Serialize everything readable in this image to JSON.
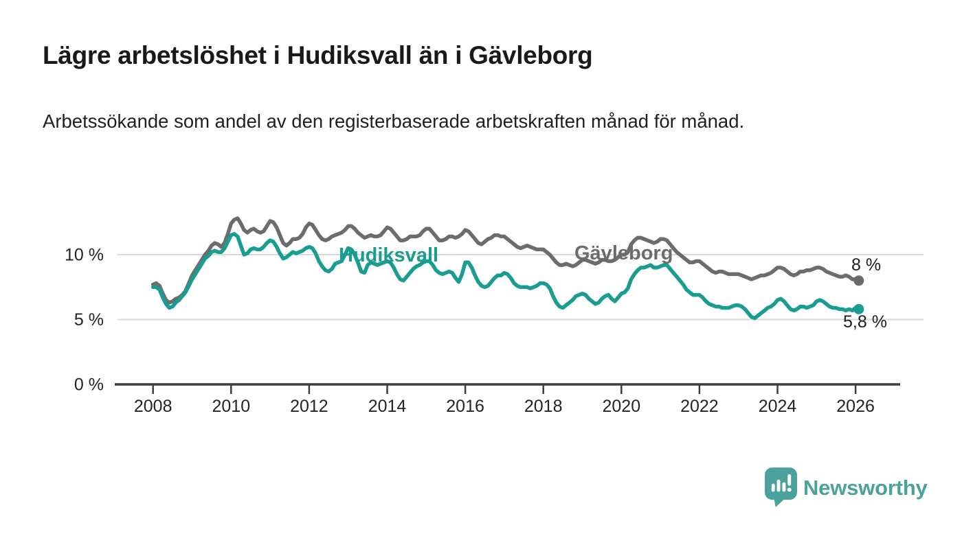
{
  "header": {
    "title": "Lägre arbetslöshet i Hudiksvall än i Gävleborg",
    "subtitle": "Arbetssökande som andel av den registerbaserade arbetskraften månad för månad."
  },
  "chart_data": {
    "type": "line",
    "title": "Lägre arbetslöshet i Hudiksvall än i Gävleborg",
    "subtitle": "Arbetssökande som andel av den registerbaserade arbetskraften månad för månad.",
    "x_unit": "year (monthly observations)",
    "y_unit": "%",
    "x_start": "2008-01",
    "x_end": "2026-02",
    "x_ticks": [
      2008,
      2010,
      2012,
      2014,
      2016,
      2018,
      2020,
      2022,
      2024,
      2026
    ],
    "y_ticks": [
      {
        "value": 0,
        "label": "0 %"
      },
      {
        "value": 5,
        "label": "5 %"
      },
      {
        "value": 10,
        "label": "10 %"
      }
    ],
    "ylim": [
      0,
      13.5
    ],
    "grid": "horizontal",
    "legend": "inline-labels",
    "series": [
      {
        "name": "Gävleborg",
        "color": "#6c6c6c",
        "end_label": "8 %",
        "last_value": 8.0,
        "values": [
          7.7,
          7.8,
          7.6,
          7.0,
          6.5,
          6.3,
          6.4,
          6.6,
          6.7,
          6.9,
          7.2,
          7.8,
          8.4,
          8.8,
          9.2,
          9.6,
          10.0,
          10.3,
          10.7,
          10.9,
          10.8,
          10.6,
          10.9,
          11.6,
          12.4,
          12.7,
          12.8,
          12.4,
          11.9,
          11.7,
          11.9,
          12.0,
          11.8,
          11.7,
          11.8,
          12.2,
          12.6,
          12.5,
          12.1,
          11.5,
          10.9,
          10.7,
          10.9,
          11.2,
          11.2,
          11.3,
          11.6,
          12.1,
          12.4,
          12.3,
          11.9,
          11.5,
          11.2,
          11.1,
          11.2,
          11.4,
          11.5,
          11.6,
          11.7,
          11.9,
          12.2,
          12.2,
          12.0,
          11.7,
          11.5,
          11.3,
          11.4,
          11.5,
          11.4,
          11.4,
          11.5,
          11.8,
          12.1,
          12.0,
          11.7,
          11.4,
          11.1,
          11.1,
          11.2,
          11.4,
          11.4,
          11.4,
          11.5,
          11.8,
          12.0,
          12.0,
          11.7,
          11.4,
          11.1,
          11.1,
          11.2,
          11.4,
          11.4,
          11.3,
          11.4,
          11.6,
          11.9,
          11.8,
          11.5,
          11.2,
          10.9,
          10.8,
          11.0,
          11.2,
          11.3,
          11.5,
          11.5,
          11.4,
          11.4,
          11.2,
          11.0,
          10.8,
          10.6,
          10.5,
          10.6,
          10.7,
          10.6,
          10.5,
          10.4,
          10.4,
          10.4,
          10.2,
          10.0,
          9.7,
          9.4,
          9.2,
          9.2,
          9.3,
          9.2,
          9.1,
          9.2,
          9.4,
          9.6,
          9.6,
          9.5,
          9.4,
          9.3,
          9.4,
          9.6,
          9.6,
          9.5,
          9.5,
          9.6,
          9.8,
          10.0,
          10.0,
          10.2,
          10.8,
          11.1,
          11.3,
          11.3,
          11.2,
          11.1,
          11.0,
          10.9,
          11.0,
          11.2,
          11.2,
          11.1,
          10.8,
          10.5,
          10.2,
          10.0,
          9.8,
          9.6,
          9.4,
          9.4,
          9.5,
          9.5,
          9.3,
          9.1,
          8.9,
          8.7,
          8.6,
          8.7,
          8.7,
          8.6,
          8.5,
          8.5,
          8.5,
          8.5,
          8.4,
          8.3,
          8.2,
          8.1,
          8.2,
          8.3,
          8.4,
          8.4,
          8.5,
          8.6,
          8.8,
          9.0,
          9.0,
          8.9,
          8.7,
          8.5,
          8.4,
          8.5,
          8.7,
          8.7,
          8.8,
          8.8,
          8.9,
          9.0,
          9.0,
          8.9,
          8.7,
          8.6,
          8.5,
          8.4,
          8.3,
          8.3,
          8.4,
          8.3,
          8.1,
          8.1,
          8.0
        ]
      },
      {
        "name": "Hudiksvall",
        "color": "#189d90",
        "end_label": "5,8 %",
        "last_value": 5.8,
        "values": [
          7.5,
          7.5,
          7.3,
          6.7,
          6.2,
          5.9,
          6.0,
          6.3,
          6.5,
          6.8,
          7.1,
          7.6,
          8.1,
          8.5,
          8.9,
          9.3,
          9.7,
          9.9,
          10.2,
          10.3,
          10.2,
          10.2,
          10.5,
          11.0,
          11.5,
          11.6,
          11.4,
          10.7,
          10.0,
          10.1,
          10.4,
          10.5,
          10.4,
          10.4,
          10.6,
          10.9,
          11.1,
          11.0,
          10.6,
          10.1,
          9.7,
          9.8,
          10.0,
          10.2,
          10.1,
          10.2,
          10.3,
          10.5,
          10.6,
          10.5,
          10.1,
          9.5,
          9.1,
          8.8,
          8.7,
          8.9,
          9.3,
          9.4,
          9.5,
          10.0,
          10.5,
          10.4,
          10.0,
          9.4,
          8.7,
          8.6,
          9.2,
          9.4,
          9.3,
          9.2,
          9.3,
          9.4,
          9.5,
          9.4,
          9.0,
          8.5,
          8.1,
          8.0,
          8.3,
          8.6,
          8.9,
          9.1,
          9.2,
          9.4,
          9.5,
          9.5,
          9.2,
          8.8,
          8.6,
          8.5,
          8.6,
          8.7,
          8.6,
          8.2,
          7.9,
          8.5,
          9.4,
          9.4,
          9.0,
          8.4,
          7.9,
          7.6,
          7.5,
          7.6,
          7.9,
          8.2,
          8.4,
          8.4,
          8.6,
          8.5,
          8.2,
          7.8,
          7.6,
          7.5,
          7.5,
          7.5,
          7.4,
          7.5,
          7.6,
          7.8,
          7.8,
          7.7,
          7.4,
          6.8,
          6.3,
          6.0,
          5.9,
          6.1,
          6.3,
          6.5,
          6.8,
          6.9,
          7.0,
          6.9,
          6.6,
          6.4,
          6.2,
          6.3,
          6.6,
          6.8,
          6.9,
          6.6,
          6.4,
          6.7,
          7.0,
          7.1,
          7.4,
          8.1,
          8.5,
          8.8,
          9.0,
          9.0,
          9.1,
          9.2,
          9.0,
          9.0,
          9.1,
          9.2,
          9.2,
          8.9,
          8.6,
          8.3,
          8.0,
          7.7,
          7.3,
          7.1,
          6.9,
          6.9,
          6.9,
          6.7,
          6.4,
          6.2,
          6.1,
          6.0,
          6.0,
          5.9,
          5.9,
          5.9,
          6.0,
          6.1,
          6.1,
          6.0,
          5.8,
          5.5,
          5.2,
          5.1,
          5.3,
          5.5,
          5.7,
          5.9,
          6.0,
          6.2,
          6.5,
          6.6,
          6.4,
          6.1,
          5.8,
          5.7,
          5.8,
          6.0,
          6.0,
          5.9,
          6.0,
          6.1,
          6.4,
          6.5,
          6.4,
          6.2,
          6.0,
          5.9,
          5.9,
          5.8,
          5.8,
          5.7,
          5.8,
          5.7,
          5.9,
          5.8
        ]
      }
    ],
    "colors": {
      "hudiksvall": "#189d90",
      "gavleborg": "#6c6c6c",
      "gridline": "#d9d9d9",
      "axis": "#3d3d3d",
      "text": "#1d1d1d"
    }
  },
  "footer": {
    "brand": "Newsworthy",
    "brand_color": "#4ba29d"
  }
}
